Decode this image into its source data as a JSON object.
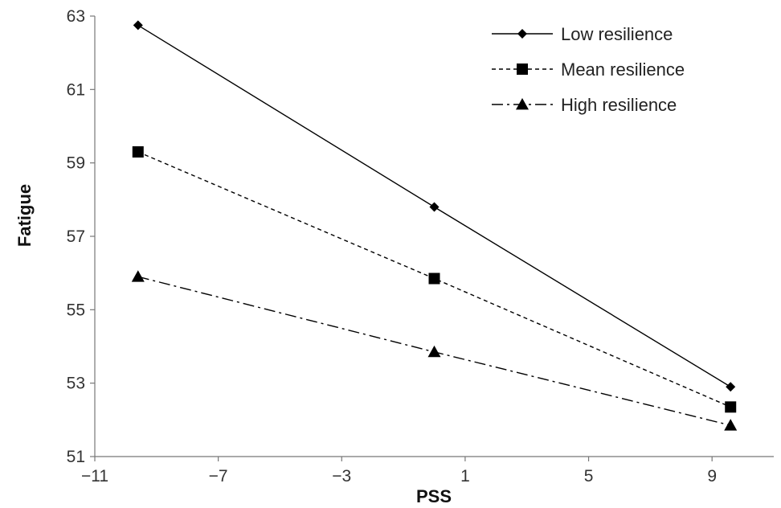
{
  "chart_data": {
    "type": "line",
    "xlabel": "PSS",
    "ylabel": "Fatigue",
    "xlim": [
      -11,
      11
    ],
    "ylim": [
      51,
      63
    ],
    "xticks": [
      "-11",
      "-7",
      "-3",
      "1",
      "5",
      "9"
    ],
    "yticks": [
      "51",
      "53",
      "55",
      "57",
      "59",
      "61",
      "63"
    ],
    "grid": false,
    "legend_position": "top-right",
    "series": [
      {
        "name": "Low resilience",
        "marker": "diamond",
        "line": "solid",
        "x": [
          -9.6,
          0.0,
          9.6
        ],
        "y": [
          62.75,
          57.8,
          52.9
        ]
      },
      {
        "name": "Mean resilience",
        "marker": "square",
        "line": "dashed",
        "x": [
          -9.6,
          0.0,
          9.6
        ],
        "y": [
          59.3,
          55.85,
          52.35
        ]
      },
      {
        "name": "High resilience",
        "marker": "triangle",
        "line": "dashdot",
        "x": [
          -9.6,
          0.0,
          9.6
        ],
        "y": [
          55.9,
          53.85,
          51.85
        ]
      }
    ],
    "color": "#000000"
  }
}
